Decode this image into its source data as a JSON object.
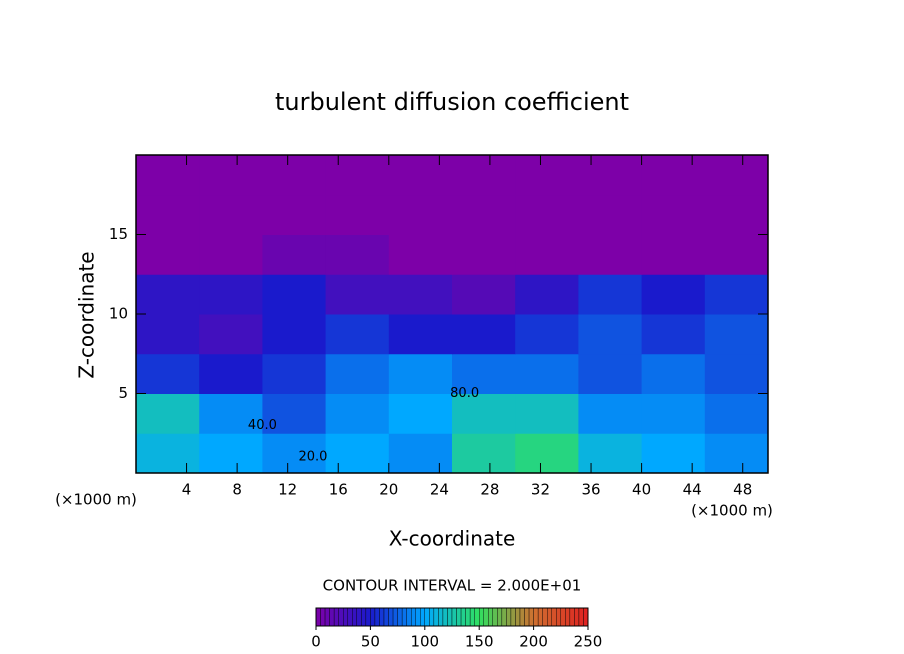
{
  "chart_data": {
    "type": "heatmap",
    "title": "turbulent diffusion coefficient",
    "x_label": "X-coordinate",
    "y_label": "Z-coordinate",
    "x_unit": "(×1000 m)",
    "y_unit": "(×1000 m)",
    "xlim": [
      0,
      50
    ],
    "ylim": [
      0,
      20
    ],
    "xticks": [
      4,
      8,
      12,
      16,
      20,
      24,
      28,
      32,
      36,
      40,
      44,
      48
    ],
    "yticks": [
      5,
      10,
      15
    ],
    "x": [
      2.5,
      7.5,
      12.5,
      17.5,
      22.5,
      27.5,
      32.5,
      37.5,
      42.5,
      47.5
    ],
    "y": [
      1.25,
      3.75,
      6.25,
      8.75,
      11.25,
      13.75,
      16.25,
      18.75
    ],
    "values": [
      [
        110,
        100,
        90,
        100,
        90,
        130,
        140,
        110,
        100,
        90
      ],
      [
        120,
        90,
        70,
        90,
        100,
        120,
        120,
        90,
        90,
        80
      ],
      [
        60,
        50,
        60,
        80,
        90,
        80,
        80,
        70,
        80,
        70
      ],
      [
        40,
        30,
        50,
        60,
        50,
        50,
        60,
        70,
        60,
        70
      ],
      [
        40,
        40,
        50,
        30,
        30,
        20,
        40,
        60,
        50,
        60
      ],
      [
        0,
        0,
        10,
        10,
        0,
        0,
        0,
        0,
        0,
        0
      ],
      [
        0,
        0,
        0,
        0,
        0,
        0,
        0,
        0,
        0,
        0
      ],
      [
        0,
        0,
        0,
        0,
        0,
        0,
        0,
        0,
        0,
        0
      ]
    ],
    "contour_interval": "CONTOUR INTERVAL = 2.000E+01",
    "contour_labels": [
      {
        "value": 40,
        "label": "40.0"
      },
      {
        "value": 80,
        "label": "80.0"
      },
      {
        "value": 20,
        "label": "20.0"
      }
    ],
    "colorbar": {
      "lim": [
        0,
        250
      ],
      "ticks": [
        0,
        50,
        100,
        150,
        200,
        250
      ],
      "colors": [
        "#7d00a8",
        "#1a1acc",
        "#00a8ff",
        "#30e060",
        "#d07030",
        "#e02020"
      ]
    }
  }
}
